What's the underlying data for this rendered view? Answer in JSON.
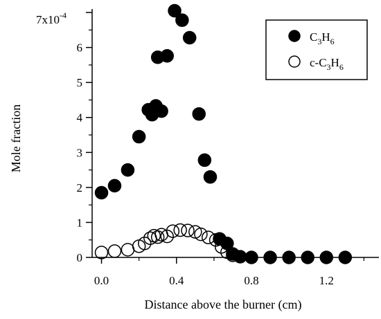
{
  "chart_data": {
    "type": "scatter",
    "xlabel": "Distance above the burner (cm)",
    "ylabel": "Mole fraction",
    "xlim": [
      -0.05,
      1.48
    ],
    "ylim": [
      0,
      7.1
    ],
    "y_exponent_label": "7x10",
    "y_exponent_superscript": "-4",
    "x_ticks": [
      0.0,
      0.4,
      0.8,
      1.2
    ],
    "x_tick_labels": [
      "0.0",
      "0.4",
      "0.8",
      "1.2"
    ],
    "y_ticks": [
      0,
      1,
      2,
      3,
      4,
      5,
      6,
      7
    ],
    "y_tick_labels": [
      "0",
      "1",
      "2",
      "3",
      "4",
      "5",
      "6",
      ""
    ],
    "grid": false,
    "legend_position": "top-right",
    "series": [
      {
        "name": "C3H6",
        "legend_main": "C",
        "legend_sub1": "3",
        "legend_mid": "H",
        "legend_sub2": "6",
        "marker": "filled-circle",
        "color": "#000000",
        "points": [
          [
            0.0,
            1.85
          ],
          [
            0.07,
            2.05
          ],
          [
            0.14,
            2.5
          ],
          [
            0.2,
            3.45
          ],
          [
            0.25,
            4.22
          ],
          [
            0.27,
            4.08
          ],
          [
            0.29,
            4.33
          ],
          [
            0.3,
            5.72
          ],
          [
            0.32,
            4.18
          ],
          [
            0.35,
            5.76
          ],
          [
            0.39,
            7.05
          ],
          [
            0.43,
            6.78
          ],
          [
            0.47,
            6.28
          ],
          [
            0.52,
            4.1
          ],
          [
            0.55,
            2.78
          ],
          [
            0.58,
            2.3
          ],
          [
            0.63,
            0.53
          ],
          [
            0.67,
            0.4
          ],
          [
            0.7,
            0.1
          ],
          [
            0.74,
            0.02
          ],
          [
            0.8,
            0.0
          ],
          [
            0.9,
            0.0
          ],
          [
            1.0,
            0.0
          ],
          [
            1.1,
            0.0
          ],
          [
            1.2,
            0.0
          ],
          [
            1.3,
            0.0
          ]
        ]
      },
      {
        "name": "c-C3H6",
        "legend_main": "c-C",
        "legend_sub1": "3",
        "legend_mid": "H",
        "legend_sub2": "6",
        "marker": "open-circle",
        "color": "#000000",
        "points": [
          [
            0.0,
            0.14
          ],
          [
            0.07,
            0.18
          ],
          [
            0.14,
            0.22
          ],
          [
            0.2,
            0.32
          ],
          [
            0.23,
            0.4
          ],
          [
            0.26,
            0.55
          ],
          [
            0.28,
            0.62
          ],
          [
            0.3,
            0.58
          ],
          [
            0.32,
            0.65
          ],
          [
            0.35,
            0.6
          ],
          [
            0.38,
            0.75
          ],
          [
            0.42,
            0.78
          ],
          [
            0.46,
            0.77
          ],
          [
            0.5,
            0.73
          ],
          [
            0.53,
            0.66
          ],
          [
            0.57,
            0.57
          ],
          [
            0.61,
            0.5
          ],
          [
            0.64,
            0.3
          ],
          [
            0.67,
            0.15
          ],
          [
            0.7,
            0.06
          ]
        ]
      }
    ]
  }
}
